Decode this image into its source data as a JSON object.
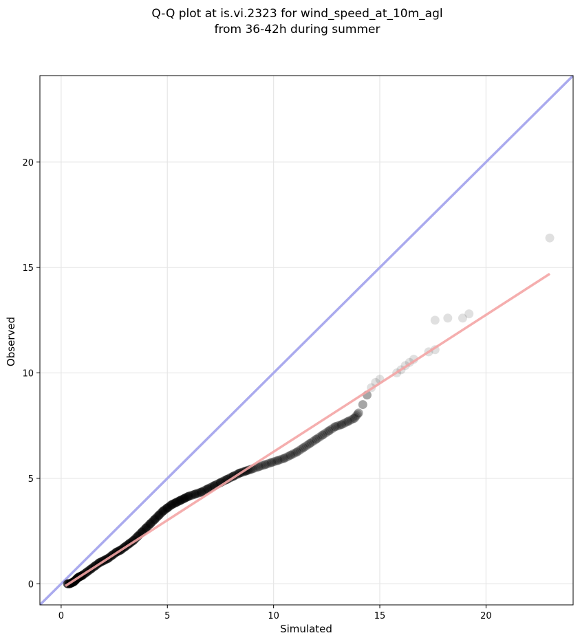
{
  "chart_data": {
    "type": "scatter",
    "title_line1": "Q-Q plot at is.vi.2323 for wind_speed_at_10m_agl",
    "title_line2": "from 36-42h during summer",
    "xlabel": "Simulated",
    "ylabel": "Observed",
    "xlim": [
      -1,
      24.1
    ],
    "ylim": [
      -1,
      24.1
    ],
    "xticks": [
      0,
      5,
      10,
      15,
      20
    ],
    "yticks": [
      0,
      5,
      10,
      15,
      20
    ],
    "xtick_labels": [
      "0",
      "5",
      "10",
      "15",
      "20"
    ],
    "ytick_labels": [
      "0",
      "5",
      "10",
      "15",
      "20"
    ],
    "grid": true,
    "reference_line": {
      "color": "#aaaaee",
      "from": [
        -1,
        -1
      ],
      "to": [
        24.1,
        24.1
      ]
    },
    "fit_line": {
      "color": "#f4a5a5",
      "from": [
        0.2,
        -0.1
      ],
      "to": [
        23.0,
        14.7
      ]
    },
    "marker_color": "#000000",
    "points_x": [
      0.3,
      0.4,
      0.5,
      0.6,
      0.7,
      0.8,
      0.9,
      1.0,
      1.2,
      1.4,
      1.6,
      1.8,
      2.0,
      2.2,
      2.4,
      2.6,
      2.8,
      3.0,
      3.2,
      3.4,
      3.6,
      3.8,
      4.0,
      4.2,
      4.4,
      4.6,
      4.8,
      5.0,
      5.2,
      5.4,
      5.6,
      5.8,
      6.0,
      6.3,
      6.6,
      6.9,
      7.2,
      7.5,
      7.8,
      8.1,
      8.4,
      8.7,
      9.0,
      9.3,
      9.6,
      9.9,
      10.2,
      10.5,
      10.8,
      11.1,
      11.4,
      11.7,
      12.0,
      12.3,
      12.6,
      12.9,
      13.2,
      13.5,
      13.8,
      14.0,
      14.2,
      14.4,
      14.6,
      14.8,
      15.0,
      15.8,
      16.0,
      16.2,
      16.4,
      16.6,
      17.3,
      17.6,
      17.6,
      18.2,
      18.9,
      19.2,
      23.0
    ],
    "points_y": [
      0.0,
      0.0,
      0.05,
      0.1,
      0.2,
      0.3,
      0.35,
      0.4,
      0.55,
      0.7,
      0.85,
      1.0,
      1.1,
      1.2,
      1.35,
      1.5,
      1.6,
      1.75,
      1.9,
      2.05,
      2.25,
      2.45,
      2.65,
      2.85,
      3.05,
      3.25,
      3.45,
      3.6,
      3.75,
      3.85,
      3.95,
      4.05,
      4.15,
      4.25,
      4.35,
      4.5,
      4.65,
      4.8,
      4.95,
      5.1,
      5.25,
      5.35,
      5.45,
      5.55,
      5.65,
      5.75,
      5.85,
      5.95,
      6.1,
      6.25,
      6.45,
      6.65,
      6.85,
      7.05,
      7.25,
      7.45,
      7.55,
      7.7,
      7.85,
      8.1,
      8.5,
      8.95,
      9.3,
      9.55,
      9.7,
      10.0,
      10.15,
      10.35,
      10.5,
      10.65,
      11.0,
      11.1,
      12.5,
      12.6,
      12.6,
      12.8,
      16.4
    ]
  }
}
